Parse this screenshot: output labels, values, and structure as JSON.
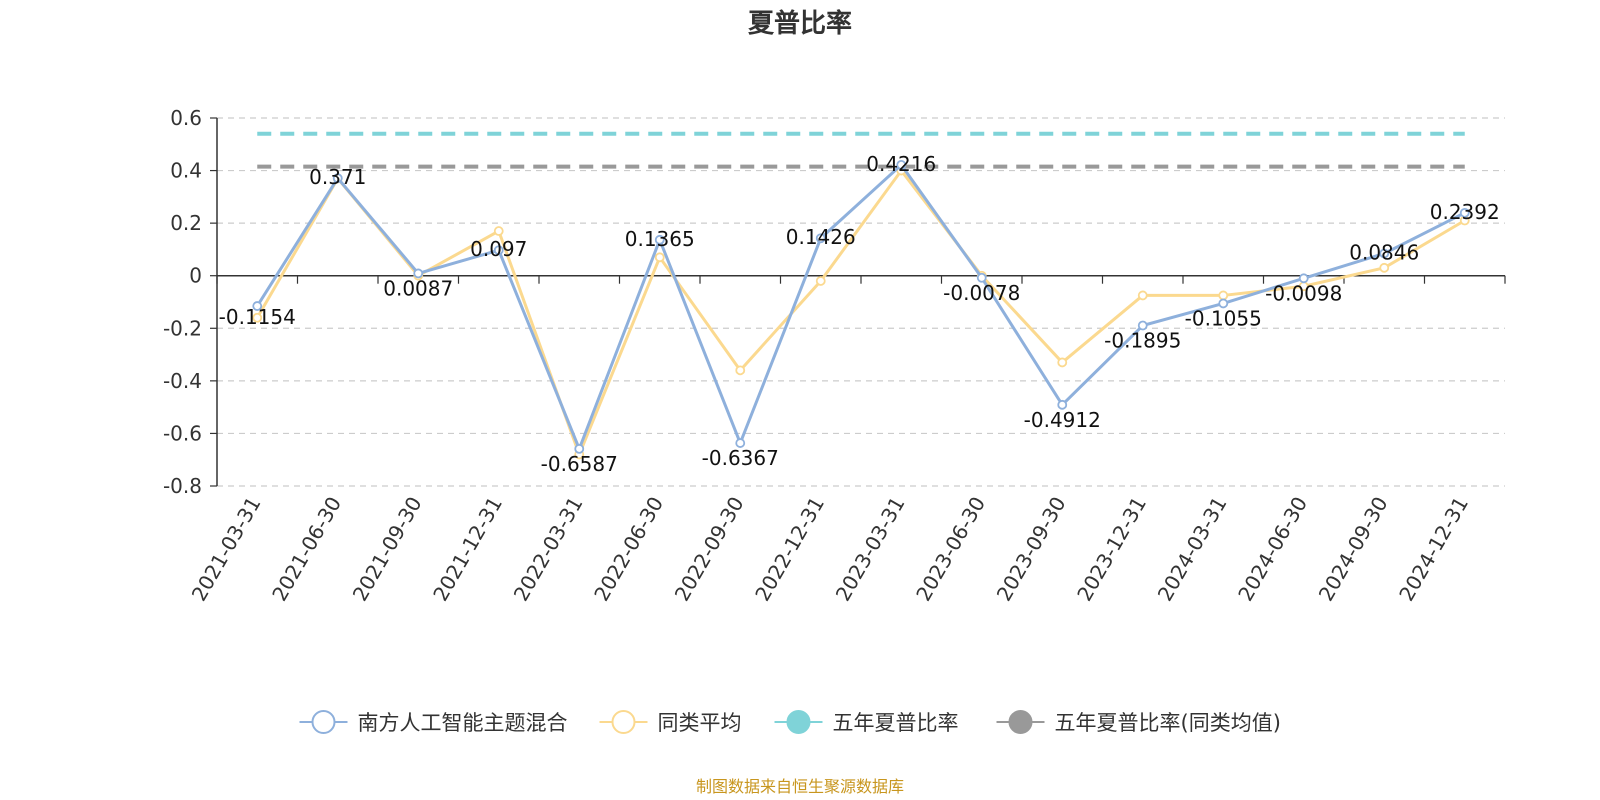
{
  "chart_data": {
    "type": "line",
    "title": "夏普比率",
    "categories": [
      "2021-03-31",
      "2021-06-30",
      "2021-09-30",
      "2021-12-31",
      "2022-03-31",
      "2022-06-30",
      "2022-09-30",
      "2022-12-31",
      "2023-03-31",
      "2023-06-30",
      "2023-09-30",
      "2023-12-31",
      "2024-03-31",
      "2024-06-30",
      "2024-09-30",
      "2024-12-31"
    ],
    "ylim": [
      -0.8,
      0.6
    ],
    "yticks": [
      0.6,
      0.4,
      0.2,
      0,
      -0.2,
      -0.4,
      -0.6,
      -0.8
    ],
    "ytick_labels": [
      "0.6",
      "0.4",
      "0.2",
      "0",
      "-0.2",
      "-0.4",
      "-0.6",
      "-0.8"
    ],
    "grid": true,
    "legend_position": "bottom",
    "series": [
      {
        "name": "南方人工智能主题混合",
        "color": "#8eb0dc",
        "values": [
          -0.1154,
          0.371,
          0.0087,
          0.097,
          -0.6587,
          0.1365,
          -0.6367,
          0.1426,
          0.4216,
          -0.0078,
          -0.4912,
          -0.1895,
          -0.1055,
          -0.0098,
          0.0846,
          0.2392
        ],
        "labels": [
          "-0.1154",
          "0.371",
          "0.0087",
          "0.097",
          "-0.6587",
          "0.1365",
          "-0.6367",
          "0.1426",
          "0.4216",
          "-0.0078",
          "-0.4912",
          "-0.1895",
          "-0.1055",
          "-0.0098",
          "0.0846",
          "0.2392"
        ]
      },
      {
        "name": "同类平均",
        "color": "#fbd98f",
        "values": [
          -0.16,
          0.37,
          0.0,
          0.17,
          -0.68,
          0.07,
          -0.36,
          -0.02,
          0.4,
          0.0,
          -0.33,
          -0.075,
          -0.075,
          -0.04,
          0.03,
          0.21
        ]
      },
      {
        "name": "五年夏普比率",
        "color": "#7fd3d8",
        "value": 0.54
      },
      {
        "name": "五年夏普比率(同类均值)",
        "color": "#999999",
        "value": 0.415
      }
    ]
  },
  "footer": {
    "source": "制图数据来自恒生聚源数据库"
  }
}
